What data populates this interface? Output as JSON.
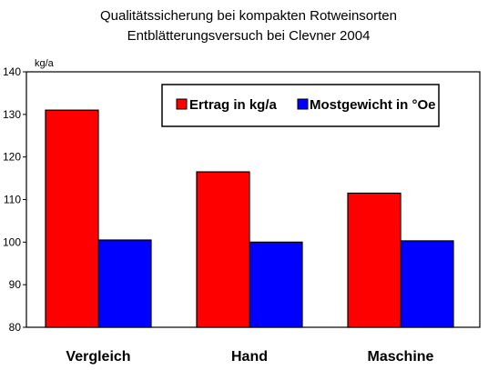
{
  "chart_data": {
    "type": "bar",
    "title": "Qualitätssicherung bei kompakten Rotweinsorten",
    "subtitle": "Entblätterungsversuch bei Clevner 2004",
    "ylabel": "kg/a",
    "xlabel": "",
    "categories": [
      "Vergleich",
      "Hand",
      "Maschine"
    ],
    "series": [
      {
        "name": "Ertrag in kg/a",
        "color": "#ff0000",
        "values": [
          131,
          116.5,
          111.5
        ]
      },
      {
        "name": "Mostgewicht in °Oe",
        "color": "#0000ff",
        "values": [
          100.5,
          100,
          100.3
        ]
      }
    ],
    "ylim": [
      80,
      140
    ],
    "yticks": [
      "80",
      "90",
      "100",
      "110",
      "120",
      "130",
      "140"
    ],
    "grid": false,
    "legend_position": "top-right",
    "plot_background": "#ffffff",
    "bar_outline_color": "#000000"
  }
}
